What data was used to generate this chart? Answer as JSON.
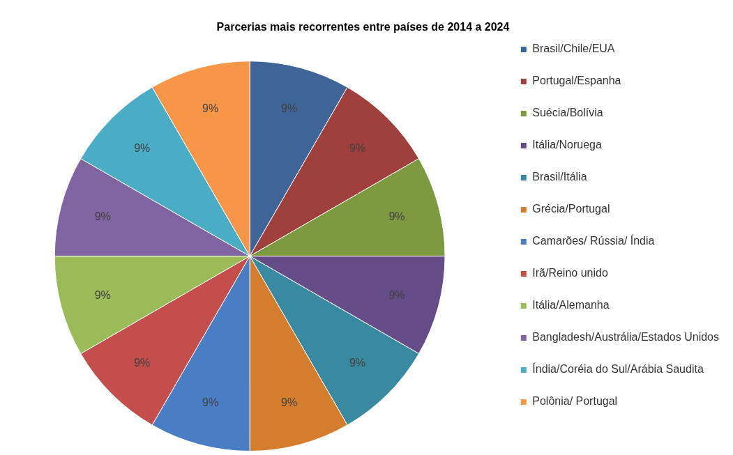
{
  "chart_data": {
    "type": "pie",
    "title": "Parcerias mais recorrentes entre países de 2014 a 2024",
    "categories": [
      "Brasil/Chile/EUA",
      "Portugal/Espanha",
      "Suécia/Bolívia",
      "Itália/Noruega",
      "Brasil/Itália",
      "Grécia/Portugal",
      "Camarões/ Rússia/ Índia",
      "Irã/Reino unido",
      "Itália/Alemanha",
      "Bangladesh/Austrália/Estados Unidos",
      "Índia/Coréia do Sul/Arábia Saudita",
      "Polônia/ Portugal"
    ],
    "values": [
      9,
      9,
      9,
      9,
      9,
      9,
      9,
      9,
      9,
      9,
      9,
      9
    ],
    "value_labels": [
      "9%",
      "9%",
      "9%",
      "9%",
      "9%",
      "9%",
      "9%",
      "9%",
      "9%",
      "9%",
      "9%",
      "9%"
    ],
    "colors": [
      "#3f6598",
      "#a0403d",
      "#7e9a40",
      "#654d87",
      "#398aa0",
      "#d47d2f",
      "#4a7ec4",
      "#c44e4b",
      "#9bbb59",
      "#8064a2",
      "#4bacc6",
      "#f79646"
    ],
    "legend": "right"
  }
}
